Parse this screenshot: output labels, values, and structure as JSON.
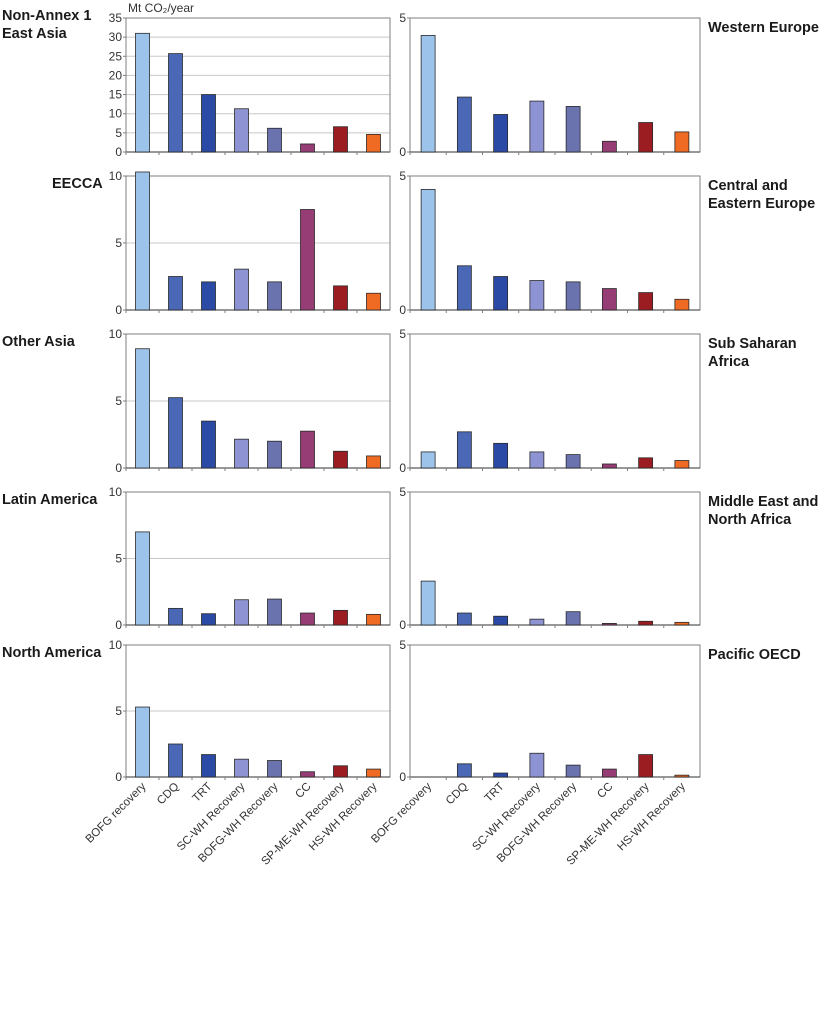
{
  "unit_label": "Mt CO₂/year",
  "colors": {
    "BOFG recovery": "#9cc3ea",
    "CDQ": "#4a68b5",
    "TRT": "#2b4aa5",
    "SC-WH Recovery": "#8e94d3",
    "BOFG-WH Recovery": "#6a73ae",
    "CC": "#963d75",
    "SP-ME-WH Recovery": "#9b1d22",
    "HS-WH Recovery": "#ef6a22"
  },
  "chart_data": [
    {
      "type": "bar",
      "region": "Non-Annex 1 East Asia",
      "title_lines": [
        "Non-Annex 1",
        "East Asia"
      ],
      "categories": [
        "BOFG recovery",
        "CDQ",
        "TRT",
        "SC-WH Recovery",
        "BOFG-WH Recovery",
        "CC",
        "SP-ME-WH Recovery",
        "HS-WH Recovery"
      ],
      "values": [
        31,
        25.7,
        15,
        11.3,
        6.2,
        2.1,
        6.6,
        4.6
      ],
      "ylim": [
        0,
        35
      ],
      "yticks": [
        0,
        5,
        10,
        15,
        20,
        25,
        30,
        35
      ],
      "ylabel": "Mt CO₂/year"
    },
    {
      "type": "bar",
      "region": "Western Europe",
      "title_lines": [
        "Western Europe"
      ],
      "categories": [
        "BOFG recovery",
        "CDQ",
        "TRT",
        "SC-WH Recovery",
        "BOFG-WH Recovery",
        "CC",
        "SP-ME-WH Recovery",
        "HS-WH Recovery"
      ],
      "values": [
        4.35,
        2.05,
        1.4,
        1.9,
        1.7,
        0.4,
        1.1,
        0.75
      ],
      "ylim": [
        0,
        5
      ],
      "yticks": [
        0,
        5
      ]
    },
    {
      "type": "bar",
      "region": "EECCA",
      "title_lines": [
        "EECCA"
      ],
      "categories": [
        "BOFG recovery",
        "CDQ",
        "TRT",
        "SC-WH Recovery",
        "BOFG-WH Recovery",
        "CC",
        "SP-ME-WH Recovery",
        "HS-WH Recovery"
      ],
      "values": [
        10.3,
        2.5,
        2.1,
        3.05,
        2.1,
        7.5,
        1.8,
        1.25
      ],
      "ylim": [
        0,
        10
      ],
      "yticks": [
        0,
        5,
        10
      ]
    },
    {
      "type": "bar",
      "region": "Central and Eastern Europe",
      "title_lines": [
        "Central and",
        "Eastern Europe"
      ],
      "categories": [
        "BOFG recovery",
        "CDQ",
        "TRT",
        "SC-WH Recovery",
        "BOFG-WH Recovery",
        "CC",
        "SP-ME-WH Recovery",
        "HS-WH Recovery"
      ],
      "values": [
        4.5,
        1.65,
        1.25,
        1.1,
        1.05,
        0.8,
        0.65,
        0.4
      ],
      "ylim": [
        0,
        5
      ],
      "yticks": [
        0,
        5
      ]
    },
    {
      "type": "bar",
      "region": "Other Asia",
      "title_lines": [
        "Other Asia"
      ],
      "categories": [
        "BOFG recovery",
        "CDQ",
        "TRT",
        "SC-WH Recovery",
        "BOFG-WH Recovery",
        "CC",
        "SP-ME-WH Recovery",
        "HS-WH Recovery"
      ],
      "values": [
        8.9,
        5.25,
        3.5,
        2.15,
        2.0,
        2.75,
        1.25,
        0.9
      ],
      "ylim": [
        0,
        10
      ],
      "yticks": [
        0,
        5,
        10
      ]
    },
    {
      "type": "bar",
      "region": "Sub Saharan Africa",
      "title_lines": [
        "Sub Saharan",
        "Africa"
      ],
      "categories": [
        "BOFG recovery",
        "CDQ",
        "TRT",
        "SC-WH Recovery",
        "BOFG-WH Recovery",
        "CC",
        "SP-ME-WH Recovery",
        "HS-WH Recovery"
      ],
      "values": [
        0.6,
        1.35,
        0.92,
        0.6,
        0.5,
        0.15,
        0.38,
        0.28
      ],
      "ylim": [
        0,
        5
      ],
      "yticks": [
        0,
        5
      ]
    },
    {
      "type": "bar",
      "region": "Latin America",
      "title_lines": [
        "Latin America"
      ],
      "categories": [
        "BOFG recovery",
        "CDQ",
        "TRT",
        "SC-WH Recovery",
        "BOFG-WH Recovery",
        "CC",
        "SP-ME-WH Recovery",
        "HS-WH Recovery"
      ],
      "values": [
        7.0,
        1.25,
        0.85,
        1.9,
        1.95,
        0.9,
        1.1,
        0.8
      ],
      "ylim": [
        0,
        10
      ],
      "yticks": [
        0,
        5,
        10
      ]
    },
    {
      "type": "bar",
      "region": "Middle East and North Africa",
      "title_lines": [
        "Middle East and",
        "North Africa"
      ],
      "categories": [
        "BOFG recovery",
        "CDQ",
        "TRT",
        "SC-WH Recovery",
        "BOFG-WH Recovery",
        "CC",
        "SP-ME-WH Recovery",
        "HS-WH Recovery"
      ],
      "values": [
        1.65,
        0.45,
        0.33,
        0.22,
        0.5,
        0.06,
        0.14,
        0.1
      ],
      "ylim": [
        0,
        5
      ],
      "yticks": [
        0,
        5
      ]
    },
    {
      "type": "bar",
      "region": "North America",
      "title_lines": [
        "North America"
      ],
      "categories": [
        "BOFG recovery",
        "CDQ",
        "TRT",
        "SC-WH Recovery",
        "BOFG-WH Recovery",
        "CC",
        "SP-ME-WH Recovery",
        "HS-WH Recovery"
      ],
      "values": [
        5.3,
        2.5,
        1.7,
        1.35,
        1.25,
        0.4,
        0.85,
        0.6
      ],
      "ylim": [
        0,
        10
      ],
      "yticks": [
        0,
        5,
        10
      ]
    },
    {
      "type": "bar",
      "region": "Pacific OECD",
      "title_lines": [
        "Pacific OECD"
      ],
      "categories": [
        "BOFG recovery",
        "CDQ",
        "TRT",
        "SC-WH Recovery",
        "BOFG-WH Recovery",
        "CC",
        "SP-ME-WH Recovery",
        "HS-WH Recovery"
      ],
      "values": [
        0,
        0.5,
        0.15,
        0.9,
        0.45,
        0.3,
        0.85,
        0.07
      ],
      "ylim": [
        0,
        5
      ],
      "yticks": [
        0,
        5
      ]
    }
  ]
}
